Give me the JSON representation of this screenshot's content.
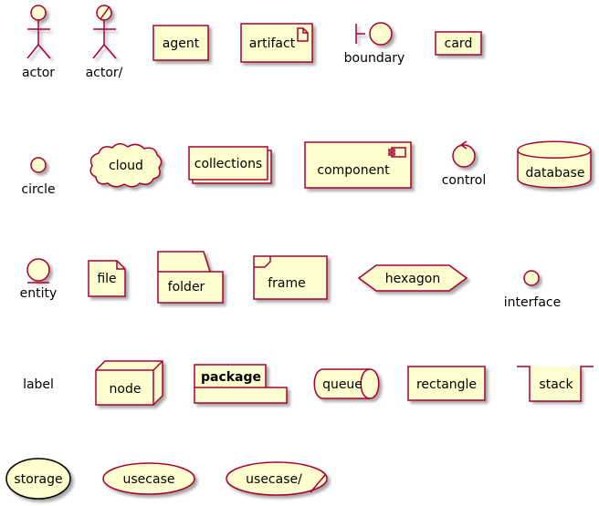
{
  "diagram": {
    "style": {
      "fill": "#FEFECE",
      "stroke": "#A80036",
      "shadow": "#d8d8d8",
      "text": "#000000",
      "background": "#FFFFFF"
    },
    "elements": [
      {
        "id": "actor",
        "label": "actor",
        "shape": "actor-stick-figure"
      },
      {
        "id": "actor-business",
        "label": "actor/",
        "shape": "actor-stick-figure-slashed"
      },
      {
        "id": "agent",
        "label": "agent",
        "shape": "rectangle"
      },
      {
        "id": "artifact",
        "label": "artifact",
        "shape": "artifact-page-icon"
      },
      {
        "id": "boundary",
        "label": "boundary",
        "shape": "boundary-icon"
      },
      {
        "id": "card",
        "label": "card",
        "shape": "card"
      },
      {
        "id": "circle",
        "label": "circle",
        "shape": "small-circle"
      },
      {
        "id": "cloud",
        "label": "cloud",
        "shape": "cloud"
      },
      {
        "id": "collections",
        "label": "collections",
        "shape": "stacked-rectangles"
      },
      {
        "id": "component",
        "label": "component",
        "shape": "component-icon-box"
      },
      {
        "id": "control",
        "label": "control",
        "shape": "control-icon"
      },
      {
        "id": "database",
        "label": "database",
        "shape": "cylinder"
      },
      {
        "id": "entity",
        "label": "entity",
        "shape": "entity-icon"
      },
      {
        "id": "file",
        "label": "file",
        "shape": "folded-corner-page"
      },
      {
        "id": "folder",
        "label": "folder",
        "shape": "folder"
      },
      {
        "id": "frame",
        "label": "frame",
        "shape": "frame-with-tab"
      },
      {
        "id": "hexagon",
        "label": "hexagon",
        "shape": "hexagon"
      },
      {
        "id": "interface",
        "label": "interface",
        "shape": "small-circle"
      },
      {
        "id": "label",
        "label": "label",
        "shape": "plain-text"
      },
      {
        "id": "node",
        "label": "node",
        "shape": "3d-box"
      },
      {
        "id": "package",
        "label": "package",
        "shape": "package-tab"
      },
      {
        "id": "queue",
        "label": "queue",
        "shape": "horizontal-cylinder"
      },
      {
        "id": "rectangle",
        "label": "rectangle",
        "shape": "rectangle"
      },
      {
        "id": "stack",
        "label": "stack",
        "shape": "stack-open-top"
      },
      {
        "id": "storage",
        "label": "storage",
        "shape": "ellipse-dark-stroke"
      },
      {
        "id": "usecase",
        "label": "usecase",
        "shape": "ellipse"
      },
      {
        "id": "usecase-business",
        "label": "usecase/",
        "shape": "ellipse-slashed"
      }
    ]
  }
}
